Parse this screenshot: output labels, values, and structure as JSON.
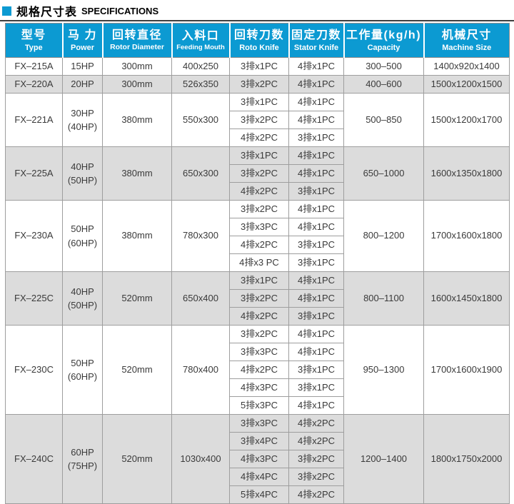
{
  "title": {
    "zh": "规格尺寸表",
    "en": "SPECIFICATIONS"
  },
  "colors": {
    "header_bg": "#0C9AD2",
    "title_bullet": "#0C9AD2",
    "title_rule": "#3f3f3f",
    "shaded_row_bg": "#DCDCDC",
    "header_text": "#FFFFFF",
    "body_text": "#3A3A3A"
  },
  "table": {
    "columns": [
      {
        "key": "type",
        "zh": "型号",
        "en": "Type"
      },
      {
        "key": "power",
        "zh": "马 力",
        "en": "Power"
      },
      {
        "key": "rotor-diameter",
        "zh": "回转直径",
        "en": "Rotor Diameter"
      },
      {
        "key": "feeding-mouth",
        "zh": "入料口",
        "en": "Feeding Mouth"
      },
      {
        "key": "roto-knife",
        "zh": "回转刀数",
        "en": "Roto Knife"
      },
      {
        "key": "stator-knife",
        "zh": "固定刀数",
        "en": "Stator Knife"
      },
      {
        "key": "capacity",
        "zh": "工作量(kg/h)",
        "en": "Capacity"
      },
      {
        "key": "machine-size",
        "zh": "机械尺寸",
        "en": "Machine Size"
      }
    ],
    "rows": [
      {
        "type": "FX–215A",
        "power_lines": [
          "15HP"
        ],
        "rotor": "300mm",
        "feeding": "400x250",
        "knives": [
          [
            "3排x1PC",
            "4排x1PC"
          ]
        ],
        "capacity": "300–500",
        "size": "1400x920x1400",
        "shaded": false
      },
      {
        "type": "FX–220A",
        "power_lines": [
          "20HP"
        ],
        "rotor": "300mm",
        "feeding": "526x350",
        "knives": [
          [
            "3排x2PC",
            "4排x1PC"
          ]
        ],
        "capacity": "400–600",
        "size": "1500x1200x1500",
        "shaded": true
      },
      {
        "type": "FX–221A",
        "power_lines": [
          "30HP",
          "(40HP)"
        ],
        "rotor": "380mm",
        "feeding": "550x300",
        "knives": [
          [
            "3排x1PC",
            "4排x1PC"
          ],
          [
            "3排x2PC",
            "4排x1PC"
          ],
          [
            "4排x2PC",
            "3排x1PC"
          ]
        ],
        "capacity": "500–850",
        "size": "1500x1200x1700",
        "shaded": false
      },
      {
        "type": "FX–225A",
        "power_lines": [
          "40HP",
          "(50HP)"
        ],
        "rotor": "380mm",
        "feeding": "650x300",
        "knives": [
          [
            "3排x1PC",
            "4排x1PC"
          ],
          [
            "3排x2PC",
            "4排x1PC"
          ],
          [
            "4排x2PC",
            "3排x1PC"
          ]
        ],
        "capacity": "650–1000",
        "size": "1600x1350x1800",
        "shaded": true
      },
      {
        "type": "FX–230A",
        "power_lines": [
          "50HP",
          "(60HP)"
        ],
        "rotor": "380mm",
        "feeding": "780x300",
        "knives": [
          [
            "3排x2PC",
            "4排x1PC"
          ],
          [
            "3排x3PC",
            "4排x1PC"
          ],
          [
            "4排x2PC",
            "3排x1PC"
          ],
          [
            "4排x3 PC",
            "3排x1PC"
          ]
        ],
        "capacity": "800–1200",
        "size": "1700x1600x1800",
        "shaded": false
      },
      {
        "type": "FX–225C",
        "power_lines": [
          "40HP",
          "(50HP)"
        ],
        "rotor": "520mm",
        "feeding": "650x400",
        "knives": [
          [
            "3排x1PC",
            "4排x1PC"
          ],
          [
            "3排x2PC",
            "4排x1PC"
          ],
          [
            "4排x2PC",
            "3排x1PC"
          ]
        ],
        "capacity": "800–1100",
        "size": "1600x1450x1800",
        "shaded": true
      },
      {
        "type": "FX–230C",
        "power_lines": [
          "50HP",
          "(60HP)"
        ],
        "rotor": "520mm",
        "feeding": "780x400",
        "knives": [
          [
            "3排x2PC",
            "4排x1PC"
          ],
          [
            "3排x3PC",
            "4排x1PC"
          ],
          [
            "4排x2PC",
            "3排x1PC"
          ],
          [
            "4排x3PC",
            "3排x1PC"
          ],
          [
            "5排x3PC",
            "4排x1PC"
          ]
        ],
        "capacity": "950–1300",
        "size": "1700x1600x1900",
        "shaded": false
      },
      {
        "type": "FX–240C",
        "power_lines": [
          "60HP",
          "(75HP)"
        ],
        "rotor": "520mm",
        "feeding": "1030x400",
        "knives": [
          [
            "3排x3PC",
            "4排x2PC"
          ],
          [
            "3排x4PC",
            "4排x2PC"
          ],
          [
            "4排x3PC",
            "3排x2PC"
          ],
          [
            "4排x4PC",
            "3排x2PC"
          ],
          [
            "5排x4PC",
            "4排x2PC"
          ]
        ],
        "capacity": "1200–1400",
        "size": "1800x1750x2000",
        "shaded": true
      }
    ]
  }
}
